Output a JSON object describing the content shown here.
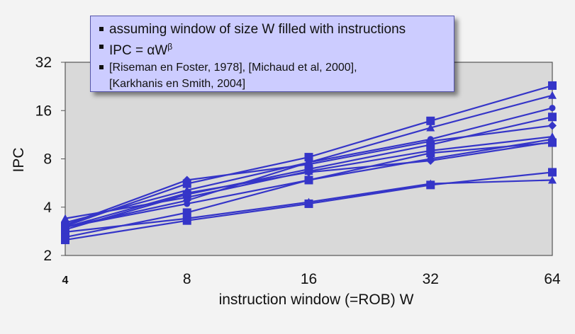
{
  "legend_notes": {
    "line1": "assuming window of size W filled with instructions",
    "line2_prefix": "IPC = ",
    "line2_alpha": "α",
    "line2_w": "W",
    "line2_beta": "β",
    "line3": "[Riseman en Foster, 1978], [Michaud et al, 2000],",
    "line4": "[Karkhanis en Smith, 2004]"
  },
  "colors": {
    "series": "#3535c8",
    "plot_bg": "#d9d9d9",
    "plot_border": "#555555",
    "page_bg": "#f3f3f3",
    "legend_bg": "#ccccff"
  },
  "chart_data": {
    "type": "line",
    "x_scale": "log2",
    "y_scale": "log2",
    "x": [
      4,
      8,
      16,
      32,
      64
    ],
    "x_tick_labels": [
      "4",
      "8",
      "16",
      "32",
      "64"
    ],
    "y_ticks": [
      2,
      4,
      8,
      16,
      32
    ],
    "y_tick_labels": [
      "2",
      "4",
      "8",
      "16",
      "32"
    ],
    "xlim": [
      4,
      64
    ],
    "ylim": [
      2,
      32
    ],
    "xlabel": "instruction window (=ROB) W",
    "ylabel": "IPC",
    "grid": false,
    "series": [
      {
        "marker": "square",
        "values": [
          2.5,
          3.3,
          4.2,
          5.5,
          6.6
        ]
      },
      {
        "marker": "triangle",
        "values": [
          2.8,
          3.4,
          4.3,
          5.6,
          5.9
        ]
      },
      {
        "marker": "circle",
        "values": [
          3.0,
          4.2,
          5.9,
          8.0,
          10.6
        ]
      },
      {
        "marker": "diamond",
        "values": [
          3.1,
          5.9,
          7.4,
          10.3,
          12.9
        ]
      },
      {
        "marker": "square",
        "values": [
          3.05,
          5.6,
          8.2,
          13.8,
          22.9
        ]
      },
      {
        "marker": "triangle",
        "values": [
          3.2,
          5.1,
          7.6,
          12.5,
          19.9
        ]
      },
      {
        "marker": "square",
        "values": [
          2.9,
          4.8,
          6.9,
          9.8,
          14.6
        ]
      },
      {
        "marker": "triangle",
        "values": [
          3.4,
          4.6,
          6.7,
          9.0,
          11.0
        ]
      },
      {
        "marker": "circle",
        "values": [
          3.0,
          4.4,
          7.6,
          10.6,
          16.6
        ]
      },
      {
        "marker": "square",
        "values": [
          2.6,
          3.7,
          5.9,
          8.7,
          10.1
        ]
      },
      {
        "marker": "diamond",
        "values": [
          3.0,
          4.9,
          6.6,
          7.8,
          10.2
        ]
      }
    ]
  }
}
